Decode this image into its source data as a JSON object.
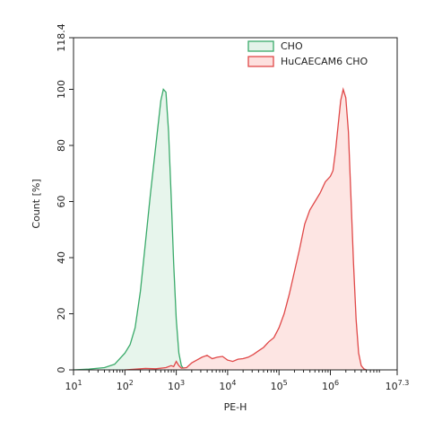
{
  "chart_data": {
    "type": "area",
    "title": "",
    "xlabel": "PE-H",
    "ylabel": "Count [%]",
    "x_scale": "log",
    "xlim": [
      10,
      19952623
    ],
    "ylim": [
      0,
      118.4
    ],
    "x_ticks": [
      {
        "value": 10,
        "base": "10",
        "exp": "1"
      },
      {
        "value": 100,
        "base": "10",
        "exp": "2"
      },
      {
        "value": 1000,
        "base": "10",
        "exp": "3"
      },
      {
        "value": 10000,
        "base": "10",
        "exp": "4"
      },
      {
        "value": 100000,
        "base": "10",
        "exp": "5"
      },
      {
        "value": 1000000,
        "base": "10",
        "exp": "6"
      },
      {
        "value": 19952623,
        "base": "10",
        "exp": "7.3"
      }
    ],
    "y_ticks": [
      {
        "value": 0,
        "label": "0"
      },
      {
        "value": 20,
        "label": "20"
      },
      {
        "value": 40,
        "label": "40"
      },
      {
        "value": 60,
        "label": "60"
      },
      {
        "value": 80,
        "label": "80"
      },
      {
        "value": 100,
        "label": "100"
      },
      {
        "value": 118.4,
        "label": "118.4"
      }
    ],
    "legend_position": "top-right",
    "series": [
      {
        "name": "CHO",
        "color": "#3aaa6a",
        "fill": "#e3f3e9",
        "points": [
          [
            10,
            0
          ],
          [
            20,
            0.3
          ],
          [
            40,
            0.8
          ],
          [
            63,
            2
          ],
          [
            100,
            6
          ],
          [
            126,
            9
          ],
          [
            158,
            15
          ],
          [
            200,
            28
          ],
          [
            250,
            45
          ],
          [
            316,
            63
          ],
          [
            400,
            80
          ],
          [
            501,
            96
          ],
          [
            560,
            100
          ],
          [
            631,
            99
          ],
          [
            708,
            85
          ],
          [
            794,
            62
          ],
          [
            891,
            38
          ],
          [
            1000,
            18
          ],
          [
            1122,
            6
          ],
          [
            1259,
            1.5
          ],
          [
            1413,
            0.3
          ],
          [
            1585,
            0
          ]
        ]
      },
      {
        "name": "HuCAECAM6 CHO",
        "color": "#e04848",
        "fill": "#fde0de",
        "points": [
          [
            100,
            0
          ],
          [
            251,
            0.5
          ],
          [
            398,
            0.4
          ],
          [
            631,
            0.8
          ],
          [
            794,
            1.5
          ],
          [
            891,
            1.2
          ],
          [
            1000,
            3
          ],
          [
            1122,
            1.5
          ],
          [
            1259,
            0.6
          ],
          [
            1585,
            0.8
          ],
          [
            2000,
            2.5
          ],
          [
            2512,
            3.5
          ],
          [
            3162,
            4.5
          ],
          [
            3981,
            5.2
          ],
          [
            5012,
            4
          ],
          [
            6310,
            4.5
          ],
          [
            7943,
            4.8
          ],
          [
            10000,
            3.5
          ],
          [
            12589,
            3
          ],
          [
            15849,
            3.8
          ],
          [
            19953,
            4
          ],
          [
            25119,
            4.5
          ],
          [
            31623,
            5.5
          ],
          [
            39811,
            6.8
          ],
          [
            50119,
            8
          ],
          [
            63096,
            10
          ],
          [
            79433,
            11.5
          ],
          [
            100000,
            15
          ],
          [
            125893,
            20
          ],
          [
            158489,
            27
          ],
          [
            199526,
            35
          ],
          [
            251189,
            43
          ],
          [
            316228,
            52
          ],
          [
            398107,
            57
          ],
          [
            501187,
            60
          ],
          [
            630957,
            63
          ],
          [
            794328,
            67
          ],
          [
            1000000,
            69
          ],
          [
            1122018,
            71
          ],
          [
            1258925,
            78
          ],
          [
            1412538,
            87
          ],
          [
            1584893,
            96
          ],
          [
            1778279,
            100
          ],
          [
            1995262,
            97
          ],
          [
            2238721,
            85
          ],
          [
            2511886,
            62
          ],
          [
            2818383,
            38
          ],
          [
            3162278,
            18
          ],
          [
            3548134,
            6
          ],
          [
            3981072,
            1.5
          ],
          [
            4466836,
            0.4
          ],
          [
            5011872,
            0
          ]
        ]
      }
    ]
  }
}
